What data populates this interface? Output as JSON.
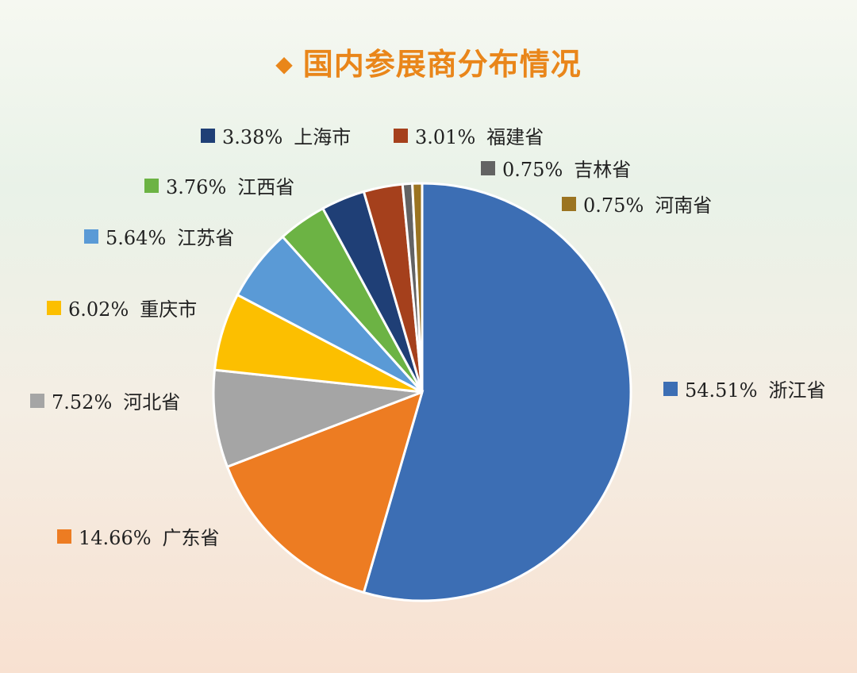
{
  "title": "国内参展商分布情况",
  "chart_data": {
    "type": "pie",
    "title": "国内参展商分布情况",
    "start": "12 o'clock, clockwise",
    "legend": "labels next to markers around pie",
    "slices": [
      {
        "label": "浙江省",
        "pct_text": "54.51%",
        "value": 54.51,
        "color": "#3c6eb4"
      },
      {
        "label": "广东省",
        "pct_text": "14.66%",
        "value": 14.66,
        "color": "#ed7c22"
      },
      {
        "label": "河北省",
        "pct_text": "7.52%",
        "value": 7.52,
        "color": "#a5a5a5"
      },
      {
        "label": "重庆市",
        "pct_text": "6.02%",
        "value": 6.02,
        "color": "#fcbf00"
      },
      {
        "label": "江苏省",
        "pct_text": "5.64%",
        "value": 5.64,
        "color": "#5a9ad6"
      },
      {
        "label": "江西省",
        "pct_text": "3.76%",
        "value": 3.76,
        "color": "#6cb344"
      },
      {
        "label": "上海市",
        "pct_text": "3.38%",
        "value": 3.38,
        "color": "#1f3f76"
      },
      {
        "label": "福建省",
        "pct_text": "3.01%",
        "value": 3.01,
        "color": "#a5401c"
      },
      {
        "label": "吉林省",
        "pct_text": "0.75%",
        "value": 0.75,
        "color": "#636363"
      },
      {
        "label": "河南省",
        "pct_text": "0.75%",
        "value": 0.75,
        "color": "#9b7421"
      }
    ]
  }
}
